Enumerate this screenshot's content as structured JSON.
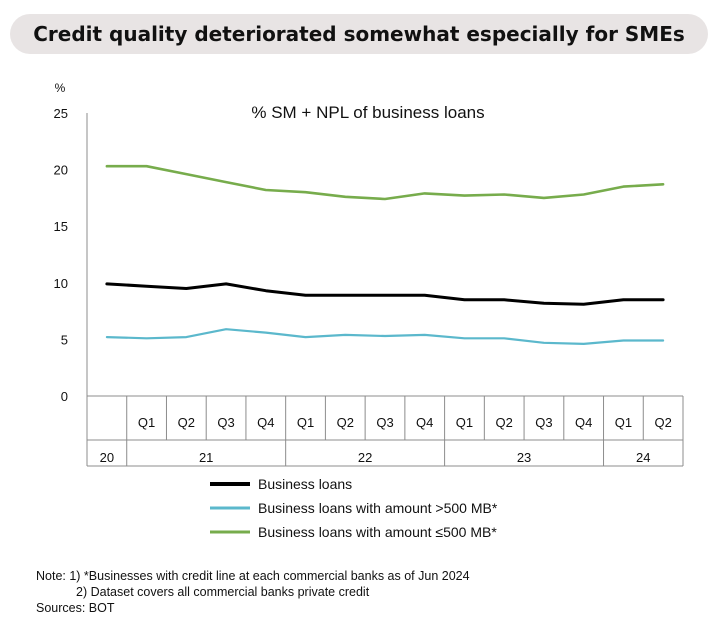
{
  "header": {
    "title": "Credit quality deteriorated somewhat especially for SMEs"
  },
  "chart_data": {
    "type": "line",
    "title": "% SM + NPL of business loans",
    "ylabel": "%",
    "ylim": [
      0,
      25
    ],
    "yticks": [
      0,
      5,
      10,
      15,
      20,
      25
    ],
    "grid": false,
    "legend_position": "bottom",
    "categories": [
      "20Q4",
      "21Q1",
      "21Q2",
      "21Q3",
      "21Q4",
      "22Q1",
      "22Q2",
      "22Q3",
      "22Q4",
      "23Q1",
      "23Q2",
      "23Q3",
      "23Q4",
      "24Q1",
      "24Q2"
    ],
    "quarter_labels": [
      "",
      "Q1",
      "Q2",
      "Q3",
      "Q4",
      "Q1",
      "Q2",
      "Q3",
      "Q4",
      "Q1",
      "Q2",
      "Q3",
      "Q4",
      "Q1",
      "Q2"
    ],
    "year_groups": [
      {
        "label": "20",
        "start": 0,
        "end": 0
      },
      {
        "label": "21",
        "start": 1,
        "end": 4
      },
      {
        "label": "22",
        "start": 5,
        "end": 8
      },
      {
        "label": "23",
        "start": 9,
        "end": 12
      },
      {
        "label": "24",
        "start": 13,
        "end": 14
      }
    ],
    "series": [
      {
        "name": "Business loans",
        "color": "#000000",
        "values": [
          9.9,
          9.7,
          9.5,
          9.9,
          9.3,
          8.9,
          8.9,
          8.9,
          8.9,
          8.5,
          8.5,
          8.2,
          8.1,
          8.5,
          8.5
        ]
      },
      {
        "name": "Business loans with amount >500 MB*",
        "color": "#5bb8cc",
        "values": [
          5.2,
          5.1,
          5.2,
          5.9,
          5.6,
          5.2,
          5.4,
          5.3,
          5.4,
          5.1,
          5.1,
          4.7,
          4.6,
          4.9,
          4.9
        ]
      },
      {
        "name": "Business loans with amount ≤500 MB*",
        "color": "#77ac4c",
        "values": [
          20.3,
          20.3,
          19.6,
          18.9,
          18.2,
          18.0,
          17.6,
          17.4,
          17.9,
          17.7,
          17.8,
          17.5,
          17.8,
          18.5,
          18.7
        ]
      }
    ]
  },
  "notes": {
    "line1": "Note: 1) *Businesses with credit line at each commercial banks as of Jun 2024",
    "line2": "2)  Dataset covers all commercial banks private credit",
    "line3": "Sources: BOT"
  }
}
